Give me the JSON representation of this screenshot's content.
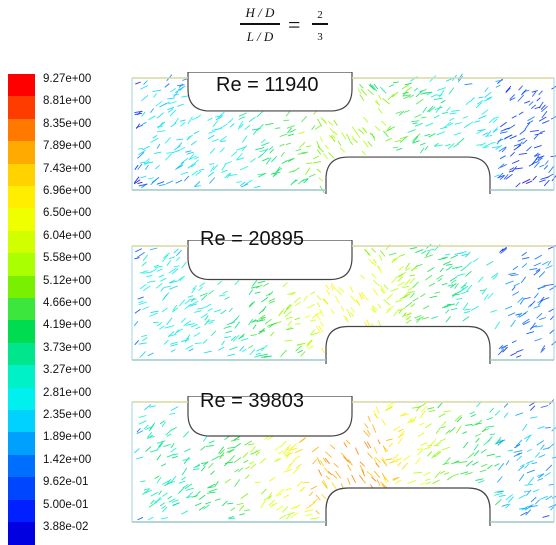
{
  "header": {
    "formula": {
      "num_top": "H / D",
      "den_bottom": "L / D",
      "eq": "=",
      "ratio_num": "2",
      "ratio_den": "3"
    }
  },
  "legend": {
    "levels": [
      "9.27e+00",
      "8.81e+00",
      "8.35e+00",
      "7.89e+00",
      "7.43e+00",
      "6.96e+00",
      "6.50e+00",
      "6.04e+00",
      "5.58e+00",
      "5.12e+00",
      "4.66e+00",
      "4.19e+00",
      "3.73e+00",
      "3.27e+00",
      "2.81e+00",
      "2.35e+00",
      "1.89e+00",
      "1.42e+00",
      "9.62e-01",
      "5.00e-01",
      "3.88e-02"
    ],
    "colors": [
      "#ff0000",
      "#ff3c00",
      "#ff7800",
      "#ffaa00",
      "#ffd200",
      "#ffee00",
      "#f0ff00",
      "#d2ff00",
      "#aaff00",
      "#78f000",
      "#3ce63c",
      "#00dc50",
      "#00e68c",
      "#00f0c8",
      "#00f0f0",
      "#00d2ff",
      "#00a0ff",
      "#006eff",
      "#0046ff",
      "#0020ff",
      "#0000e0"
    ]
  },
  "panels": [
    {
      "label": "Re = 11940",
      "intensity": 0.62
    },
    {
      "label": "Re = 20895",
      "intensity": 0.74
    },
    {
      "label": "Re = 39803",
      "intensity": 0.92
    }
  ]
}
